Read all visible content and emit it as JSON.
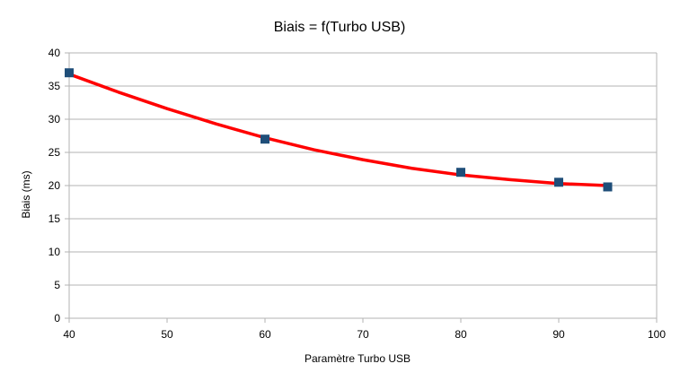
{
  "chart_data": {
    "type": "scatter",
    "title": "Biais = f(Turbo USB)",
    "xlabel": "Paramètre Turbo USB",
    "ylabel": "Biais (ms)",
    "xlim": [
      40,
      100
    ],
    "ylim": [
      0,
      40
    ],
    "xticks": [
      40,
      50,
      60,
      70,
      80,
      90,
      100
    ],
    "yticks": [
      0,
      5,
      10,
      15,
      20,
      25,
      30,
      35,
      40
    ],
    "grid": "horizontal",
    "legend": "none",
    "series": [
      {
        "values": [
          {
            "x": 40,
            "y": 37.0
          },
          {
            "x": 60,
            "y": 27.0
          },
          {
            "x": 80,
            "y": 22.0
          },
          {
            "x": 90,
            "y": 20.5
          },
          {
            "x": 95,
            "y": 19.8
          }
        ],
        "marker_color": "#1f4e79"
      }
    ],
    "trendline": {
      "type": "polynomial",
      "color": "#ff0000",
      "points": [
        {
          "x": 40,
          "y": 36.8
        },
        {
          "x": 45,
          "y": 34.1
        },
        {
          "x": 50,
          "y": 31.6
        },
        {
          "x": 55,
          "y": 29.3
        },
        {
          "x": 60,
          "y": 27.2
        },
        {
          "x": 65,
          "y": 25.4
        },
        {
          "x": 70,
          "y": 23.9
        },
        {
          "x": 75,
          "y": 22.6
        },
        {
          "x": 80,
          "y": 21.6
        },
        {
          "x": 85,
          "y": 20.9
        },
        {
          "x": 90,
          "y": 20.3
        },
        {
          "x": 95,
          "y": 20.0
        }
      ]
    }
  }
}
